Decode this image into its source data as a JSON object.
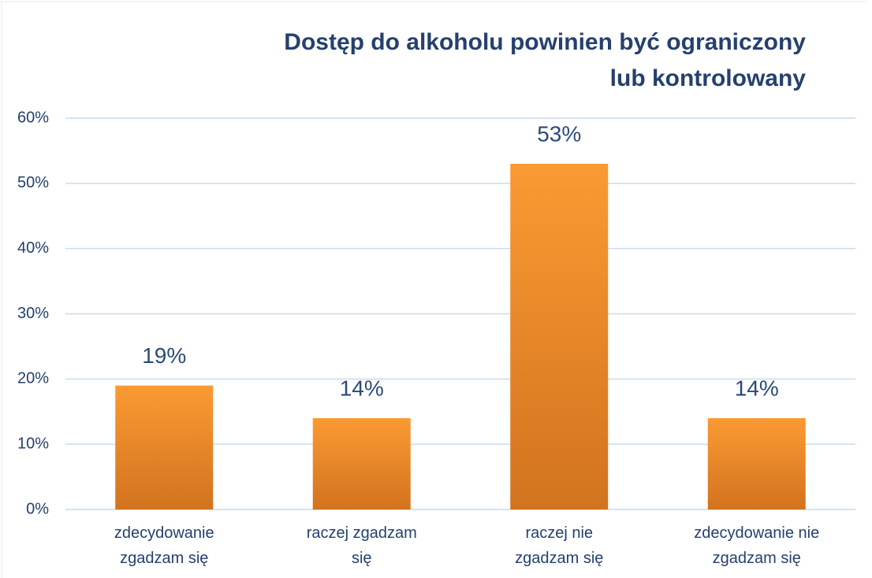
{
  "chart_data": {
    "type": "bar",
    "title": [
      "Dostęp do alkoholu powinien być ograniczony",
      "lub kontrolowany"
    ],
    "categories": [
      "zdecydowanie zgadzam się",
      "raczej zgadzam się",
      "raczej nie zgadzam się",
      "zdecydowanie nie zgadzam się"
    ],
    "values": [
      19,
      14,
      53,
      14
    ],
    "value_labels": [
      "19%",
      "14%",
      "53%",
      "14%"
    ],
    "color": "#f28a26",
    "ylim": [
      0,
      60
    ],
    "yticks": [
      {
        "value": 0,
        "label": "0%"
      },
      {
        "value": 10,
        "label": "10%"
      },
      {
        "value": 20,
        "label": "20%"
      },
      {
        "value": 30,
        "label": "30%"
      },
      {
        "value": 40,
        "label": "40%"
      },
      {
        "value": 50,
        "label": "50%"
      },
      {
        "value": 60,
        "label": "60%"
      }
    ],
    "grid": true
  }
}
